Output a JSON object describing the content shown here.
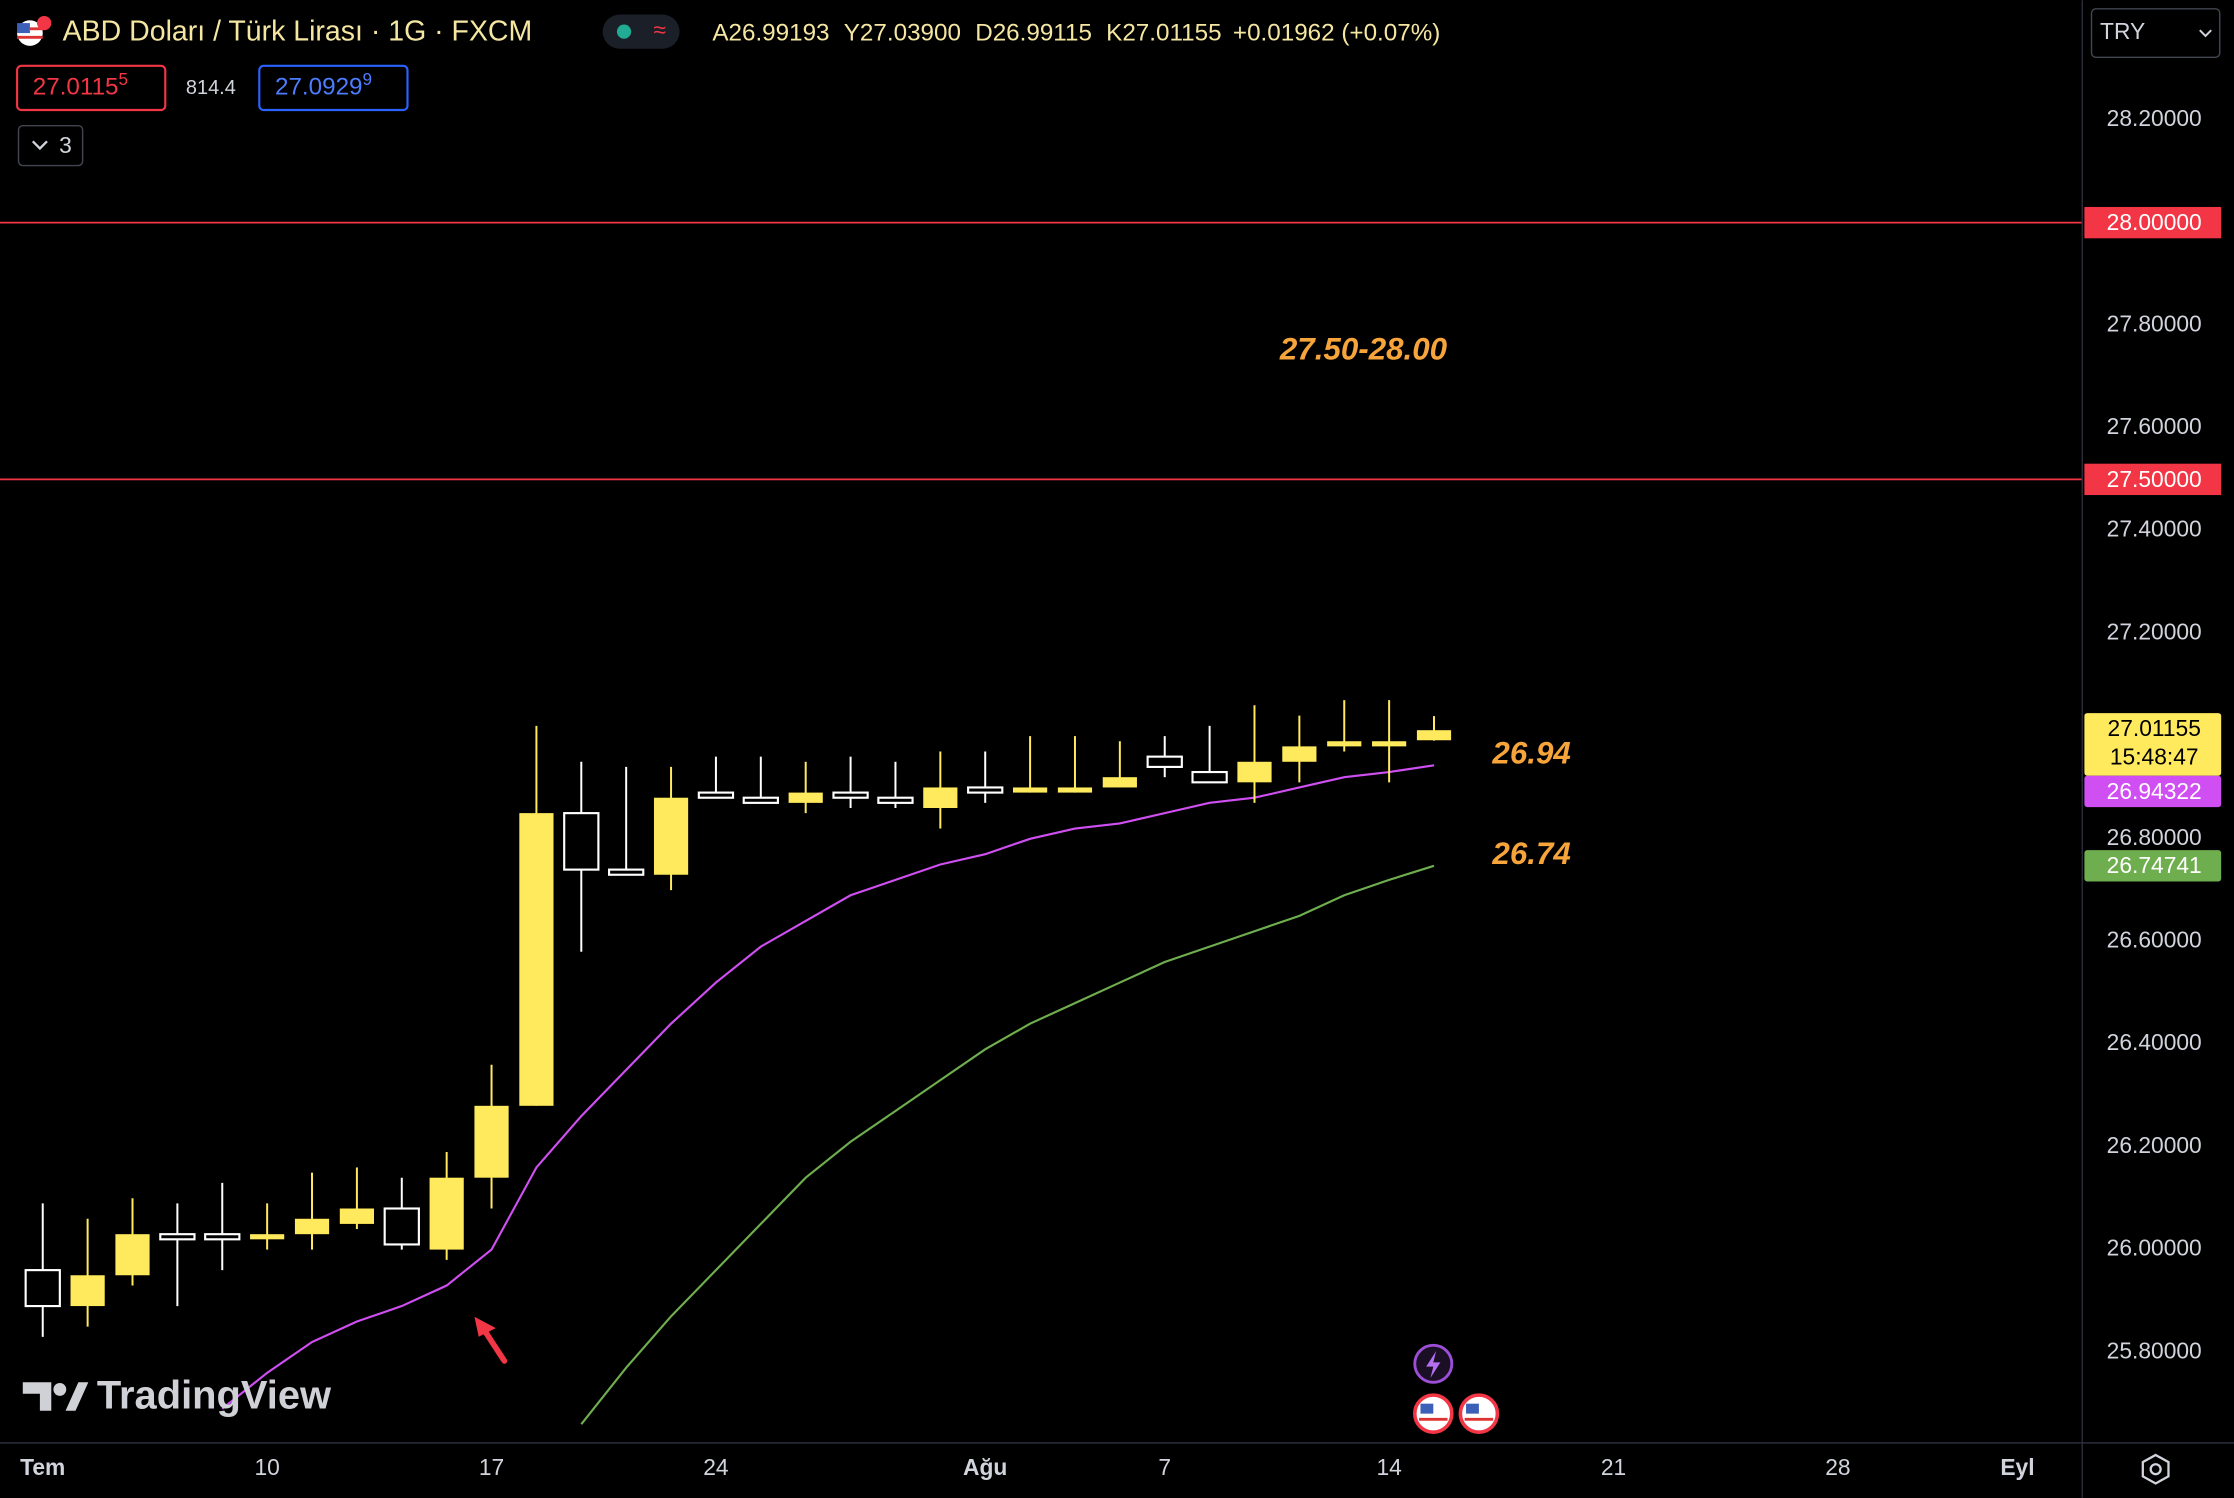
{
  "chart_data": {
    "type": "candlestick",
    "title": "ABD Doları / Türk Lirası · 1G · FXCM",
    "ohlc_legend": [
      {
        "key": "A",
        "value": "26.99193"
      },
      {
        "key": "Y",
        "value": "27.03900"
      },
      {
        "key": "D",
        "value": "26.99115"
      },
      {
        "key": "K",
        "value": "27.01155"
      }
    ],
    "change": "+0.01962 (+0.07%)",
    "toolbar": {
      "bid": "27.0115",
      "bid_sup": "5",
      "spread": "814.4",
      "ask": "27.0929",
      "ask_sup": "9",
      "collapse_count": "3",
      "currency": "TRY"
    },
    "watermark": "TradingView",
    "countdown": "15:48:47",
    "categories": [
      "Tem",
      null,
      null,
      null,
      null,
      "10",
      null,
      null,
      null,
      null,
      "17",
      null,
      null,
      null,
      null,
      "24",
      null,
      null,
      null,
      null,
      null,
      "Ağu",
      null,
      null,
      null,
      "7",
      null,
      null,
      null,
      null,
      "14",
      null,
      null,
      null,
      null,
      "21",
      null,
      null,
      null,
      null,
      "28",
      null,
      null,
      null,
      "Eyl"
    ],
    "open": [
      25.96,
      25.89,
      25.95,
      26.03,
      26.03,
      26.02,
      26.03,
      26.05,
      26.08,
      26.0,
      26.14,
      26.28,
      26.85,
      26.74,
      26.73,
      26.89,
      26.88,
      26.87,
      26.89,
      26.88,
      26.86,
      26.9,
      26.89,
      26.89,
      26.9,
      26.96,
      26.93,
      26.91,
      26.95,
      26.98,
      26.98,
      26.99193,
      null,
      null,
      null,
      null,
      null,
      null,
      null,
      null,
      null,
      null,
      null,
      null,
      null
    ],
    "high": [
      26.09,
      26.06,
      26.1,
      26.09,
      26.13,
      26.09,
      26.15,
      26.16,
      26.14,
      26.19,
      26.36,
      27.02,
      26.95,
      26.94,
      26.94,
      26.96,
      26.96,
      26.95,
      26.96,
      26.95,
      26.97,
      26.97,
      27.0,
      27.0,
      26.99,
      27.0,
      27.02,
      27.06,
      27.04,
      27.07,
      27.07,
      27.039,
      null,
      null,
      null,
      null,
      null,
      null,
      null,
      null,
      null,
      null,
      null,
      null,
      null
    ],
    "low": [
      25.83,
      25.85,
      25.93,
      25.89,
      25.96,
      26.0,
      26.0,
      26.04,
      26.0,
      25.98,
      26.08,
      26.28,
      26.58,
      26.73,
      26.7,
      26.88,
      26.87,
      26.85,
      26.86,
      26.86,
      26.82,
      26.87,
      26.89,
      26.89,
      26.9,
      26.92,
      26.91,
      26.87,
      26.91,
      26.97,
      26.91,
      26.99115,
      null,
      null,
      null,
      null,
      null,
      null,
      null,
      null,
      null,
      null,
      null,
      null,
      null
    ],
    "close": [
      25.89,
      25.95,
      26.03,
      26.02,
      26.02,
      26.03,
      26.06,
      26.08,
      26.01,
      26.14,
      26.28,
      26.85,
      26.74,
      26.73,
      26.88,
      26.88,
      26.87,
      26.89,
      26.88,
      26.87,
      26.9,
      26.89,
      26.9,
      26.9,
      26.92,
      26.94,
      26.91,
      26.95,
      26.98,
      26.99,
      26.99,
      27.01155,
      null,
      null,
      null,
      null,
      null,
      null,
      null,
      null,
      null,
      null,
      null,
      null,
      null
    ],
    "up_color": "#ffe95c",
    "down_color": "#ffffff",
    "overlays": [
      {
        "color": "#d04ff2",
        "values": [
          null,
          null,
          null,
          null,
          25.69,
          25.76,
          25.82,
          25.86,
          25.89,
          25.93,
          26.0,
          26.16,
          26.26,
          26.35,
          26.44,
          26.52,
          26.59,
          26.64,
          26.69,
          26.72,
          26.75,
          26.77,
          26.8,
          26.82,
          26.83,
          26.85,
          26.87,
          26.88,
          26.9,
          26.92,
          26.93,
          26.94322,
          null,
          null,
          null,
          null,
          null,
          null,
          null,
          null,
          null,
          null,
          null,
          null,
          null
        ]
      },
      {
        "color": "#6fae4f",
        "values": [
          null,
          null,
          null,
          null,
          null,
          null,
          null,
          null,
          null,
          null,
          null,
          null,
          25.66,
          25.77,
          25.87,
          25.96,
          26.05,
          26.14,
          26.21,
          26.27,
          26.33,
          26.39,
          26.44,
          26.48,
          26.52,
          26.56,
          26.59,
          26.62,
          26.65,
          26.69,
          26.72,
          26.74741,
          null,
          null,
          null,
          null,
          null,
          null,
          null,
          null,
          null,
          null,
          null,
          null,
          null
        ]
      }
    ],
    "hlines": [
      {
        "value": 28,
        "label": "28.00000"
      },
      {
        "value": 27.5,
        "label": "27.50000"
      }
    ],
    "hline_color": "#f23645",
    "annotations": [
      {
        "text": "27.50-28.00"
      },
      {
        "text": "26.94"
      },
      {
        "text": "26.74"
      }
    ],
    "annotation_color": "#f7a43a",
    "ylim": [
      25.625,
      28.433
    ],
    "yticks": [
      {
        "value": 28.2,
        "label": "28.20000"
      },
      {
        "value": 27.8,
        "label": "27.80000"
      },
      {
        "value": 27.6,
        "label": "27.60000"
      },
      {
        "value": 27.4,
        "label": "27.40000"
      },
      {
        "value": 27.2,
        "label": "27.20000"
      },
      {
        "value": 26.8,
        "label": "26.80000"
      },
      {
        "value": 26.6,
        "label": "26.60000"
      },
      {
        "value": 26.4,
        "label": "26.40000"
      },
      {
        "value": 26.2,
        "label": "26.20000"
      },
      {
        "value": 26,
        "label": "26.00000"
      },
      {
        "value": 25.8,
        "label": "25.80000"
      }
    ],
    "grid": false
  }
}
